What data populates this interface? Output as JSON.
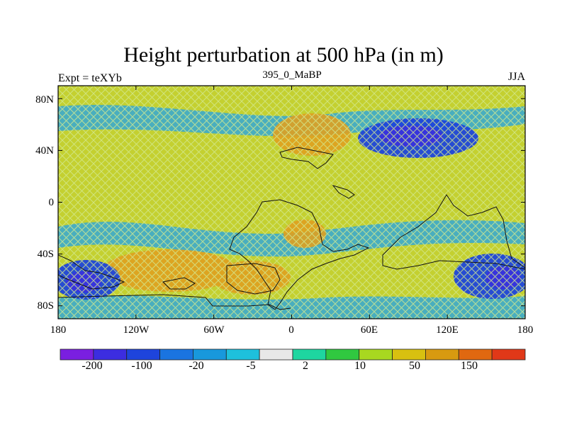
{
  "map": {
    "title": "Height perturbation at 500 hPa (in m)",
    "left_string": "Expt = teXYb",
    "center_string": "395_0_MaBP",
    "right_string": "JJA",
    "lat_labels": [
      "80N",
      "40N",
      "0",
      "40S",
      "80S"
    ],
    "lat_values": [
      80,
      40,
      0,
      -40,
      -80
    ],
    "lon_labels": [
      "180",
      "120W",
      "60W",
      "0",
      "60E",
      "120E",
      "180"
    ],
    "lon_values": [
      -180,
      -120,
      -60,
      0,
      60,
      120,
      180
    ],
    "extent": {
      "lon": [
        -180,
        180
      ],
      "lat": [
        -90,
        90
      ]
    }
  },
  "colorbar": {
    "labels": [
      "-200",
      "-100",
      "-20",
      "-5",
      "2",
      "10",
      "50",
      "150"
    ],
    "colors": [
      "#7a1fe0",
      "#3c2de0",
      "#1e44dc",
      "#1a74e0",
      "#1898dc",
      "#1ec0dc",
      "#e8e8e8",
      "#1ed6a0",
      "#30c840",
      "#a8d820",
      "#d8c010",
      "#d89a10",
      "#e06810",
      "#e03818"
    ]
  }
}
